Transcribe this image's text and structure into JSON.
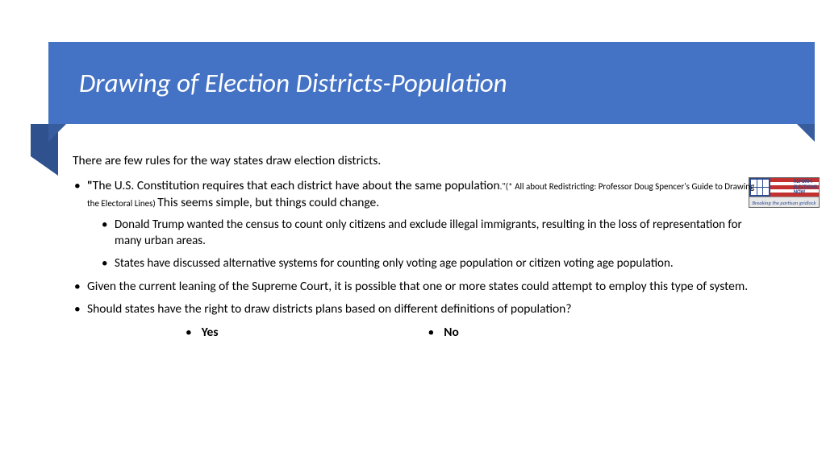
{
  "banner": {
    "title": "Drawing of Election Districts-Population",
    "bg_color": "#4472c4",
    "fold_color": "#2f528f",
    "tail_color": "#385d9e"
  },
  "intro": "There are few rules for the way states draw election districts.",
  "bullets": {
    "b1_quote_open": "\"",
    "b1_main": "The U.S. Constitution requires that each district have about the same population",
    "b1_cite": ".\"(* All about Redistricting: Professor Doug Spencer's Guide to Drawing the Electoral Lines) ",
    "b1_tail": "This seems simple, but things could change.",
    "b1_sub1": "Donald Trump wanted the census to count only citizens and exclude illegal immigrants, resulting in the loss of representation for many urban areas.",
    "b1_sub2": "States have discussed alternative systems for counting only voting age population or citizen voting age population.",
    "b2": "Given the current leaning of the Supreme Court, it is possible that one or more states could attempt to employ this type of system.",
    "b3": "Should states have the right to draw districts plans based on different definitions of population?"
  },
  "options": {
    "yes": "Yes",
    "no": "No"
  },
  "logo": {
    "line1": "REFORM",
    "line2": "ELECTIONS",
    "line3": "NOW",
    "tagline": "Breaking the partisan gridlock"
  }
}
